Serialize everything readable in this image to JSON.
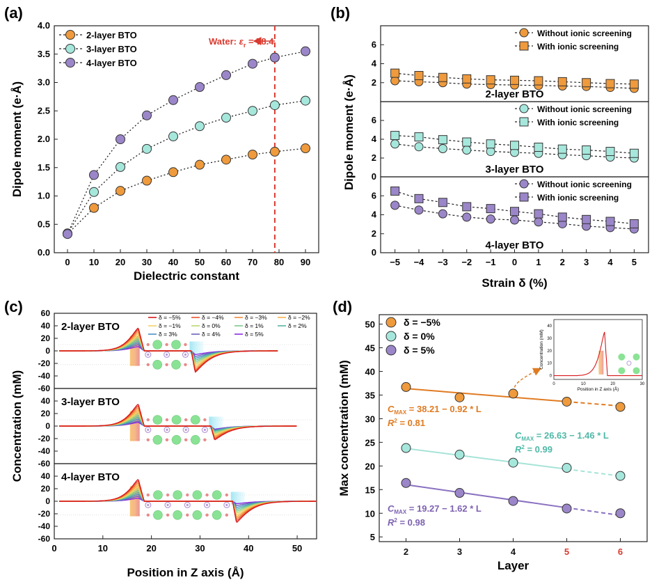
{
  "panel_labels": [
    "(a)",
    "(b)",
    "(c)",
    "(d)"
  ],
  "colors": {
    "orange": "#ef9a3c",
    "teal": "#a6e7dc",
    "purple": "#9b86c9",
    "dark_orange": "#e07b22",
    "dark_teal": "#4fb8a7",
    "dark_purple": "#7d62b1",
    "red": "#d93a2f"
  },
  "chart_data": [
    {
      "type": "line",
      "panel": "(a)",
      "xlabel": "Dielectric constant",
      "ylabel": "Dipole moment (e·Å)",
      "xlim": [
        -5,
        95
      ],
      "ylim": [
        0,
        4.0
      ],
      "xticks": [
        0,
        10,
        20,
        30,
        40,
        50,
        60,
        70,
        80,
        90
      ],
      "yticks": [
        0.0,
        0.5,
        1.0,
        1.5,
        2.0,
        2.5,
        3.0,
        3.5,
        4.0
      ],
      "x": [
        0,
        10,
        20,
        30,
        40,
        50,
        60,
        70,
        78.4,
        90
      ],
      "series": [
        {
          "name": "2-layer BTO",
          "values": [
            0.33,
            0.79,
            1.09,
            1.27,
            1.42,
            1.55,
            1.64,
            1.73,
            1.78,
            1.84
          ]
        },
        {
          "name": "3-layer BTO",
          "values": [
            0.34,
            1.07,
            1.51,
            1.83,
            2.05,
            2.23,
            2.38,
            2.5,
            2.6,
            2.68
          ]
        },
        {
          "name": "4-layer BTO",
          "values": [
            0.33,
            1.37,
            2.0,
            2.42,
            2.69,
            2.92,
            3.13,
            3.33,
            3.44,
            3.55
          ]
        }
      ],
      "annotation": {
        "label": "Water: ",
        "symbol": "ε",
        "sub": "r",
        "value_text": " = 78.4",
        "x": 78.4
      }
    },
    {
      "type": "line",
      "panel": "(b)",
      "xlabel": "Strain δ (%)",
      "ylabel": "Dipole moment (e·Å)",
      "x": [
        -5,
        -4,
        -3,
        -2,
        -1,
        0,
        1,
        2,
        3,
        4,
        5
      ],
      "xticks": [
        "−5",
        "−4",
        "−3",
        "−2",
        "−1",
        "0",
        "1",
        "2",
        "3",
        "4",
        "5"
      ],
      "subplots": [
        {
          "title": "2-layer BTO",
          "ylim": [
            0,
            8
          ],
          "yticks": [
            2,
            4,
            6
          ],
          "series": [
            {
              "name": "Without ionic screening",
              "values": [
                2.2,
                2.1,
                2.0,
                1.85,
                1.8,
                1.75,
                1.7,
                1.65,
                1.6,
                1.5,
                1.4
              ]
            },
            {
              "name": "With ionic screening",
              "values": [
                3.0,
                2.75,
                2.55,
                2.4,
                2.3,
                2.25,
                2.2,
                2.1,
                2.0,
                1.9,
                1.85
              ]
            }
          ]
        },
        {
          "title": "3-layer BTO",
          "ylim": [
            0,
            8
          ],
          "yticks": [
            0,
            2,
            4,
            6
          ],
          "series": [
            {
              "name": "Without ionic screening",
              "values": [
                3.5,
                3.2,
                3.0,
                2.85,
                2.7,
                2.6,
                2.5,
                2.35,
                2.25,
                2.1,
                2.0
              ]
            },
            {
              "name": "With ionic screening",
              "values": [
                4.4,
                4.25,
                3.95,
                3.7,
                3.5,
                3.35,
                3.15,
                2.95,
                2.85,
                2.7,
                2.5
              ]
            }
          ]
        },
        {
          "title": "4-layer BTO",
          "ylim": [
            0,
            8
          ],
          "yticks": [
            0,
            2,
            4,
            6
          ],
          "series": [
            {
              "name": "Without ionic screening",
              "values": [
                5.0,
                4.5,
                4.1,
                3.75,
                3.55,
                3.45,
                3.25,
                3.05,
                2.8,
                2.65,
                2.5
              ]
            },
            {
              "name": "With ionic screening",
              "values": [
                6.5,
                5.7,
                5.3,
                4.85,
                4.65,
                4.35,
                4.1,
                3.75,
                3.5,
                3.3,
                3.05
              ]
            }
          ]
        }
      ]
    },
    {
      "type": "line",
      "panel": "(c)",
      "xlabel": "Position in Z axis (Å)",
      "ylabel": "Concentration (mM)",
      "xlim": [
        0,
        54
      ],
      "xticks": [
        0,
        10,
        20,
        30,
        40,
        50
      ],
      "legend_entries": [
        "δ = −5%",
        "δ = −4%",
        "δ = −3%",
        "δ = −2%",
        "δ = −1%",
        "δ = 0%",
        "δ = 1%",
        "δ = 2%",
        "δ = 3%",
        "δ = 4%",
        "δ = 5%"
      ],
      "legend_colors": [
        "#d7191c",
        "#e8542c",
        "#f08a3a",
        "#f6b24c",
        "#f4d166",
        "#b9d870",
        "#7cc98a",
        "#55b6a4",
        "#4c8fc4",
        "#6b62b8",
        "#8a2be2"
      ],
      "subplots": [
        {
          "title": "2-layer BTO",
          "ylim": [
            -60,
            60
          ],
          "yticks": [
            -60,
            -40,
            -20,
            0,
            20,
            40,
            60
          ],
          "peak_pos": 17.3,
          "trough_pos": 29.0,
          "end": 46,
          "peak_values": [
            36.5,
            34,
            31,
            28,
            25,
            22,
            19,
            16,
            13,
            10,
            7
          ],
          "trough_values": [
            -34,
            -32,
            -30,
            -27,
            -24,
            -21,
            -18,
            -15,
            -12,
            -9,
            -6
          ]
        },
        {
          "title": "3-layer BTO",
          "ylim": [
            -60,
            60
          ],
          "yticks": [
            -60,
            -40,
            -20,
            0,
            20,
            40
          ],
          "peak_pos": 17.3,
          "trough_pos": 33.0,
          "end": 50,
          "peak_values": [
            35,
            32,
            29,
            26,
            23,
            20,
            17,
            14,
            11,
            8,
            6
          ],
          "trough_values": [
            -22,
            -20,
            -18,
            -16,
            -14,
            -12,
            -10,
            -8,
            -7,
            -6,
            -5
          ]
        },
        {
          "title": "4-layer BTO",
          "ylim": [
            -60,
            60
          ],
          "yticks": [
            -60,
            -40,
            -20,
            0,
            20,
            40
          ],
          "peak_pos": 17.3,
          "trough_pos": 37.5,
          "end": 54,
          "peak_values": [
            35,
            32,
            29,
            26,
            23,
            20,
            17,
            14,
            11,
            8,
            5
          ],
          "trough_values": [
            -34,
            -31,
            -28,
            -25,
            -22,
            -19,
            -16,
            -13,
            -10,
            -7,
            -4
          ]
        }
      ]
    },
    {
      "type": "scatter",
      "panel": "(d)",
      "xlabel": "Layer",
      "ylabel": "Max concentration (mM)",
      "xlim": [
        1.5,
        6.5
      ],
      "ylim": [
        4,
        52
      ],
      "xticks": [
        2,
        3,
        4,
        5,
        6
      ],
      "red_ticks": [
        5,
        6
      ],
      "yticks": [
        5,
        10,
        15,
        20,
        25,
        30,
        35,
        40,
        45,
        50
      ],
      "x": [
        2,
        3,
        4,
        5,
        6
      ],
      "series": [
        {
          "name": "δ = −5%",
          "values": [
            36.7,
            34.5,
            35.3,
            33.6,
            32.5
          ],
          "fit": {
            "intercept": 38.21,
            "slope": -0.92
          },
          "equation_sub": "MAX",
          "equation_rest": " = 38.21 − 0.92 * L",
          "r2_rest": " = 0.81"
        },
        {
          "name": "δ = 0%",
          "values": [
            23.8,
            22.4,
            20.7,
            19.6,
            17.9
          ],
          "fit": {
            "intercept": 26.63,
            "slope": -1.46
          },
          "equation_sub": "MAX",
          "equation_rest": " = 26.63 − 1.46 * L",
          "r2_rest": " = 0.99"
        },
        {
          "name": "δ = 5%",
          "values": [
            16.4,
            14.3,
            12.6,
            11.0,
            10.0
          ],
          "fit": {
            "intercept": 19.27,
            "slope": -1.62
          },
          "equation_sub": "MAX",
          "equation_rest": " = 19.27 − 1.62 * L",
          "r2_rest": " = 0.98"
        }
      ],
      "inset": {
        "xlabel": "Position in Z axis (Å)",
        "ylabel": "Concentration (mM)",
        "xticks": [
          0,
          10,
          20,
          30
        ],
        "yticks": [
          0,
          10,
          20,
          30,
          40
        ],
        "xlim": [
          0,
          30
        ],
        "ylim": [
          -3,
          45
        ],
        "peak_x": 17.2,
        "peak_y": 35
      }
    }
  ]
}
